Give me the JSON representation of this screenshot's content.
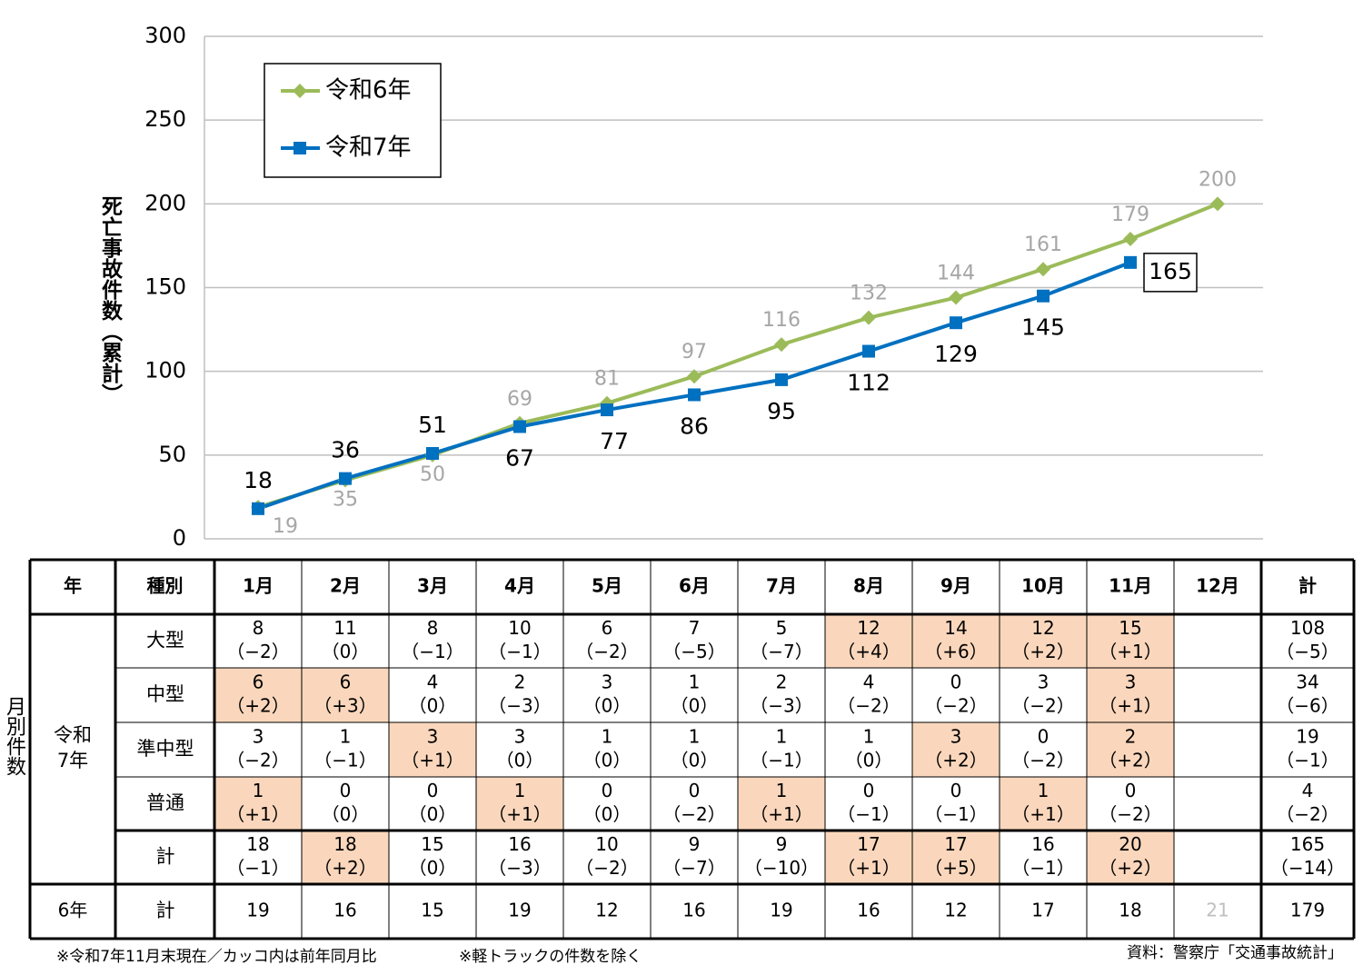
{
  "chart_data": {
    "type": "line",
    "ylabel": "死亡事故件数（累計）",
    "categories": [
      null,
      null,
      null,
      null,
      null,
      null,
      null,
      null,
      null,
      null,
      null,
      null
    ],
    "series": [
      {
        "name": "令和6年",
        "color": "#9bbb59",
        "marker": "diamond",
        "label_color": "#a6a6a6",
        "values": [
          19,
          35,
          50,
          69,
          81,
          97,
          116,
          132,
          144,
          161,
          179,
          200
        ]
      },
      {
        "name": "令和7年",
        "color": "#0070c0",
        "marker": "square",
        "label_color": "#000000",
        "values": [
          18,
          36,
          51,
          67,
          77,
          86,
          95,
          112,
          129,
          145,
          165,
          null
        ]
      }
    ],
    "ylim": [
      0,
      300
    ],
    "yticks": [
      0,
      50,
      100,
      150,
      200,
      250,
      300
    ],
    "grid": true,
    "legend": "top-left"
  },
  "table": {
    "header": [
      "年",
      "種別",
      "1月",
      "2月",
      "3月",
      "4月",
      "5月",
      "6月",
      "7月",
      "8月",
      "9月",
      "10月",
      "11月",
      "12月",
      "計"
    ],
    "side_label": "月別件数",
    "year_label": [
      "令和",
      "7年"
    ],
    "highlight_color": "#fad7bc",
    "rows": [
      {
        "type": "大型",
        "cells": [
          {
            "count": 8,
            "change": "（−2）"
          },
          {
            "count": 11,
            "change": "（0）"
          },
          {
            "count": 8,
            "change": "（−1）"
          },
          {
            "count": 10,
            "change": "（−1）"
          },
          {
            "count": 6,
            "change": "（−2）"
          },
          {
            "count": 7,
            "change": "（−5）"
          },
          {
            "count": 5,
            "change": "（−7）"
          },
          {
            "count": 12,
            "change": "（+4）",
            "highlight": true
          },
          {
            "count": 14,
            "change": "（+6）",
            "highlight": true
          },
          {
            "count": 12,
            "change": "（+2）",
            "highlight": true
          },
          {
            "count": 15,
            "change": "（+1）",
            "highlight": true
          },
          null,
          {
            "count": 108,
            "change": "（−5）"
          }
        ]
      },
      {
        "type": "中型",
        "cells": [
          {
            "count": 6,
            "change": "（+2）",
            "highlight": true
          },
          {
            "count": 6,
            "change": "（+3）",
            "highlight": true
          },
          {
            "count": 4,
            "change": "（0）"
          },
          {
            "count": 2,
            "change": "（−3）"
          },
          {
            "count": 3,
            "change": "（0）"
          },
          {
            "count": 1,
            "change": "（0）"
          },
          {
            "count": 2,
            "change": "（−3）"
          },
          {
            "count": 4,
            "change": "（−2）"
          },
          {
            "count": 0,
            "change": "（−2）"
          },
          {
            "count": 3,
            "change": "（−2）"
          },
          {
            "count": 3,
            "change": "（+1）",
            "highlight": true
          },
          null,
          {
            "count": 34,
            "change": "（−6）"
          }
        ]
      },
      {
        "type": "準中型",
        "cells": [
          {
            "count": 3,
            "change": "（−2）"
          },
          {
            "count": 1,
            "change": "（−1）"
          },
          {
            "count": 3,
            "change": "（+1）",
            "highlight": true
          },
          {
            "count": 3,
            "change": "（0）"
          },
          {
            "count": 1,
            "change": "（0）"
          },
          {
            "count": 1,
            "change": "（0）"
          },
          {
            "count": 1,
            "change": "（−1）"
          },
          {
            "count": 1,
            "change": "（0）"
          },
          {
            "count": 3,
            "change": "（+2）",
            "highlight": true
          },
          {
            "count": 0,
            "change": "（−2）"
          },
          {
            "count": 2,
            "change": "（+2）",
            "highlight": true
          },
          null,
          {
            "count": 19,
            "change": "（−1）"
          }
        ]
      },
      {
        "type": "普通",
        "cells": [
          {
            "count": 1,
            "change": "（+1）",
            "highlight": true
          },
          {
            "count": 0,
            "change": "（0）"
          },
          {
            "count": 0,
            "change": "（0）"
          },
          {
            "count": 1,
            "change": "（+1）",
            "highlight": true
          },
          {
            "count": 0,
            "change": "（0）"
          },
          {
            "count": 0,
            "change": "（−2）"
          },
          {
            "count": 1,
            "change": "（+1）",
            "highlight": true
          },
          {
            "count": 0,
            "change": "（−1）"
          },
          {
            "count": 0,
            "change": "（−1）"
          },
          {
            "count": 1,
            "change": "（+1）",
            "highlight": true
          },
          {
            "count": 0,
            "change": "（−2）"
          },
          null,
          {
            "count": 4,
            "change": "（−2）"
          }
        ]
      },
      {
        "type": "計",
        "cells": [
          {
            "count": 18,
            "change": "（−1）"
          },
          {
            "count": 18,
            "change": "（+2）",
            "highlight": true
          },
          {
            "count": 15,
            "change": "（0）"
          },
          {
            "count": 16,
            "change": "（−3）"
          },
          {
            "count": 10,
            "change": "（−2）"
          },
          {
            "count": 9,
            "change": "（−7）"
          },
          {
            "count": 9,
            "change": "（−10）"
          },
          {
            "count": 17,
            "change": "（+1）",
            "highlight": true
          },
          {
            "count": 17,
            "change": "（+5）",
            "highlight": true
          },
          {
            "count": 16,
            "change": "（−1）"
          },
          {
            "count": 20,
            "change": "（+2）",
            "highlight": true
          },
          null,
          {
            "count": 165,
            "change": "（−14）"
          }
        ]
      }
    ],
    "prev_row": {
      "year": "6年",
      "type": "計",
      "cells": [
        19,
        16,
        15,
        19,
        12,
        16,
        19,
        16,
        12,
        17,
        18,
        21,
        179
      ],
      "muted": [
        11
      ],
      "muted_color": "#bfbfbf"
    }
  },
  "notes": [
    "※令和7年11月末現在／カッコ内は前年同月比",
    "※軽トラックの件数を除く"
  ],
  "source": "資料：警察庁「交通事故統計」"
}
